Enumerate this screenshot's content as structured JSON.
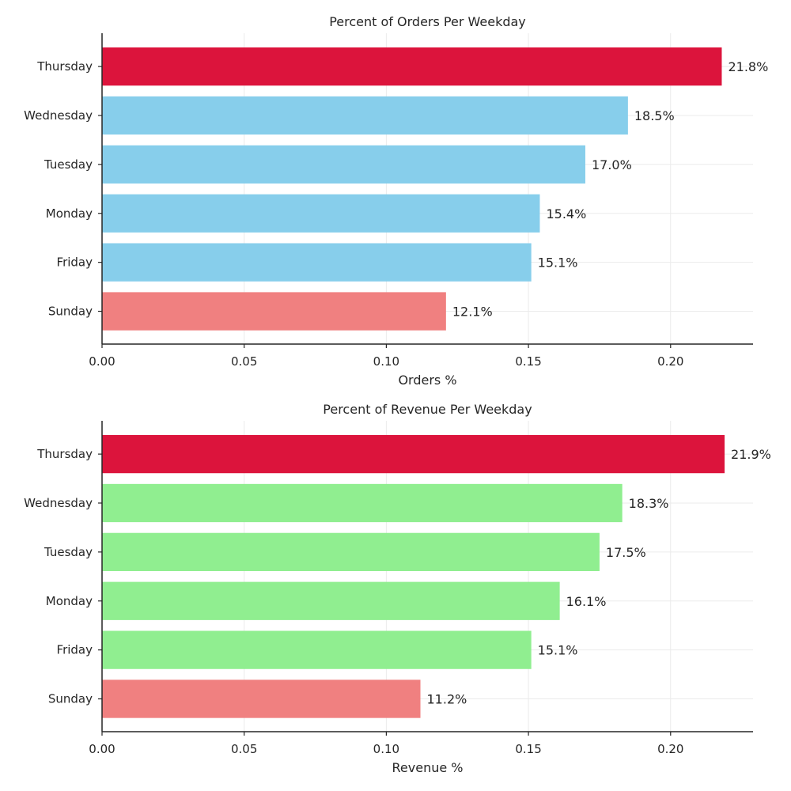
{
  "chart_data": [
    {
      "type": "bar",
      "orientation": "horizontal",
      "title": "Percent of Orders Per Weekday",
      "xlabel": "Orders %",
      "ylabel": "",
      "categories": [
        "Thursday",
        "Wednesday",
        "Tuesday",
        "Monday",
        "Friday",
        "Sunday"
      ],
      "values": [
        0.218,
        0.185,
        0.17,
        0.154,
        0.151,
        0.121
      ],
      "data_labels": [
        "21.8%",
        "18.5%",
        "17.0%",
        "15.4%",
        "15.1%",
        "12.1%"
      ],
      "bar_colors": [
        "#dc143c",
        "#87ceeb",
        "#87ceeb",
        "#87ceeb",
        "#87ceeb",
        "#f08080"
      ],
      "xlim": [
        0,
        0.229
      ],
      "xticks": [
        0.0,
        0.05,
        0.1,
        0.15,
        0.2
      ],
      "xtick_labels": [
        "0.00",
        "0.05",
        "0.10",
        "0.15",
        "0.20"
      ],
      "grid": true,
      "legend": "none"
    },
    {
      "type": "bar",
      "orientation": "horizontal",
      "title": "Percent of Revenue Per Weekday",
      "xlabel": "Revenue %",
      "ylabel": "",
      "categories": [
        "Thursday",
        "Wednesday",
        "Tuesday",
        "Monday",
        "Friday",
        "Sunday"
      ],
      "values": [
        0.219,
        0.183,
        0.175,
        0.161,
        0.151,
        0.112
      ],
      "data_labels": [
        "21.9%",
        "18.3%",
        "17.5%",
        "16.1%",
        "15.1%",
        "11.2%"
      ],
      "bar_colors": [
        "#dc143c",
        "#90ee90",
        "#90ee90",
        "#90ee90",
        "#90ee90",
        "#f08080"
      ],
      "xlim": [
        0,
        0.229
      ],
      "xticks": [
        0.0,
        0.05,
        0.1,
        0.15,
        0.2
      ],
      "xtick_labels": [
        "0.00",
        "0.05",
        "0.10",
        "0.15",
        "0.20"
      ],
      "grid": true,
      "legend": "none"
    }
  ]
}
